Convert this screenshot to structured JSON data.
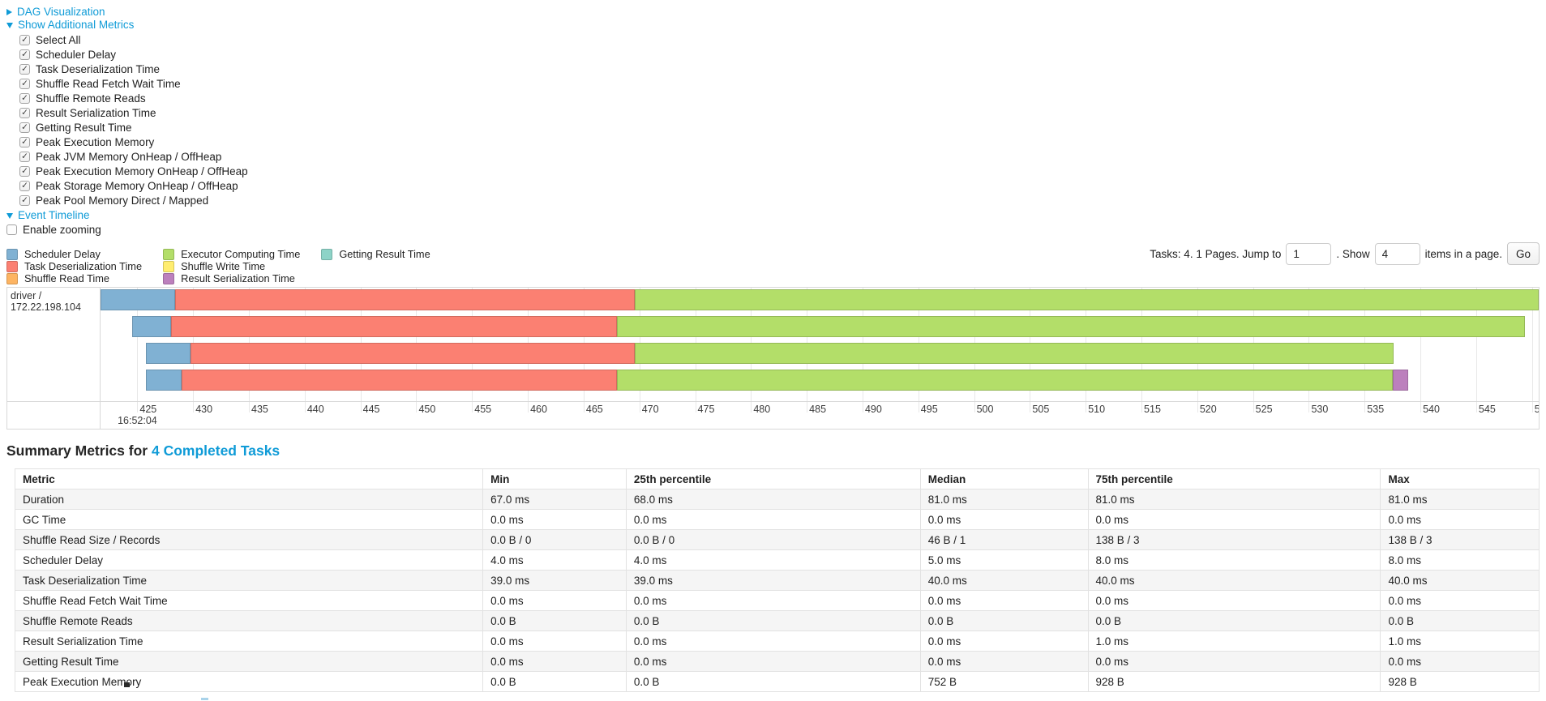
{
  "colors": {
    "link": "#0f9bd7"
  },
  "controls": {
    "dag": {
      "label": "DAG Visualization",
      "state": "collapsed"
    },
    "metrics": {
      "label": "Show Additional Metrics",
      "state": "expanded"
    },
    "timeline": {
      "label": "Event Timeline",
      "state": "expanded"
    },
    "enable_zooming": {
      "label": "Enable zooming",
      "checked": false
    },
    "metric_checkboxes": [
      {
        "label": "Select All",
        "checked": true
      },
      {
        "label": "Scheduler Delay",
        "checked": true
      },
      {
        "label": "Task Deserialization Time",
        "checked": true
      },
      {
        "label": "Shuffle Read Fetch Wait Time",
        "checked": true
      },
      {
        "label": "Shuffle Remote Reads",
        "checked": true
      },
      {
        "label": "Result Serialization Time",
        "checked": true
      },
      {
        "label": "Getting Result Time",
        "checked": true
      },
      {
        "label": "Peak Execution Memory",
        "checked": true
      },
      {
        "label": "Peak JVM Memory OnHeap / OffHeap",
        "checked": true
      },
      {
        "label": "Peak Execution Memory OnHeap / OffHeap",
        "checked": true
      },
      {
        "label": "Peak Storage Memory OnHeap / OffHeap",
        "checked": true
      },
      {
        "label": "Peak Pool Memory Direct / Mapped",
        "checked": true
      }
    ]
  },
  "legend": {
    "items": [
      {
        "id": "scheduler-delay",
        "label": "Scheduler Delay",
        "col": 0
      },
      {
        "id": "task-deserialization-time",
        "label": "Task Deserialization Time",
        "col": 0
      },
      {
        "id": "shuffle-read-time",
        "label": "Shuffle Read Time",
        "col": 0
      },
      {
        "id": "executor-computing-time",
        "label": "Executor Computing Time",
        "col": 1
      },
      {
        "id": "shuffle-write-time",
        "label": "Shuffle Write Time",
        "col": 1
      },
      {
        "id": "result-serialization-time",
        "label": "Result Serialization Time",
        "col": 1
      },
      {
        "id": "getting-result-time",
        "label": "Getting Result Time",
        "col": 2
      }
    ]
  },
  "pagination": {
    "tasks_text": "Tasks: 4. 1 Pages. Jump to",
    "jump_value": "1",
    "mid_text": ". Show",
    "show_value": "4",
    "suffix_text": "items in a page.",
    "go_label": "Go"
  },
  "chart_data": {
    "type": "timeline",
    "title": "Task Event Timeline",
    "executor_label": "driver / 172.22.198.104",
    "x_axis": {
      "unit": "ms within second 16:52:04",
      "domain": [
        421.7,
        550.6
      ],
      "ticks": [
        425,
        430,
        435,
        440,
        445,
        450,
        455,
        460,
        465,
        470,
        475,
        480,
        485,
        490,
        495,
        500,
        505,
        510,
        515,
        520,
        525,
        530,
        535,
        540,
        545,
        550
      ],
      "major_label": {
        "text": "16:52:04",
        "at": 425
      }
    },
    "series_colors": {
      "scheduler-delay": {
        "fill": "#80B1D3",
        "stroke": "#6B94B0"
      },
      "task-deserialization-time": {
        "fill": "#FB8072",
        "stroke": "#D26B5F"
      },
      "shuffle-read-time": {
        "fill": "#FDB462",
        "stroke": "#D39651"
      },
      "executor-computing-time": {
        "fill": "#B3DE69",
        "stroke": "#95B957"
      },
      "shuffle-write-time": {
        "fill": "#FFED6F",
        "stroke": "#D5C65C"
      },
      "result-serialization-time": {
        "fill": "#BC80BD",
        "stroke": "#9D6B9E"
      },
      "getting-result-time": {
        "fill": "#8DD3C7",
        "stroke": "#75B0A6"
      }
    },
    "tasks": [
      {
        "segments": [
          {
            "series": "scheduler-delay",
            "start": 421.7,
            "end": 428.4
          },
          {
            "series": "task-deserialization-time",
            "start": 428.4,
            "end": 469.6
          },
          {
            "series": "executor-computing-time",
            "start": 469.6,
            "end": 550.6
          }
        ]
      },
      {
        "segments": [
          {
            "series": "scheduler-delay",
            "start": 424.5,
            "end": 428.0
          },
          {
            "series": "task-deserialization-time",
            "start": 428.0,
            "end": 468.0
          },
          {
            "series": "executor-computing-time",
            "start": 468.0,
            "end": 549.4
          }
        ]
      },
      {
        "segments": [
          {
            "series": "scheduler-delay",
            "start": 425.8,
            "end": 429.8
          },
          {
            "series": "task-deserialization-time",
            "start": 429.8,
            "end": 469.6
          },
          {
            "series": "executor-computing-time",
            "start": 469.6,
            "end": 537.6
          }
        ]
      },
      {
        "segments": [
          {
            "series": "scheduler-delay",
            "start": 425.8,
            "end": 429.0
          },
          {
            "series": "task-deserialization-time",
            "start": 429.0,
            "end": 468.0
          },
          {
            "series": "executor-computing-time",
            "start": 468.0,
            "end": 537.5
          },
          {
            "series": "result-serialization-time",
            "start": 537.5,
            "end": 538.9
          }
        ]
      }
    ]
  },
  "summary": {
    "heading": "Summary Metrics for",
    "heading_link": "4 Completed Tasks"
  },
  "summary_table": {
    "columns": [
      "Metric",
      "Min",
      "25th percentile",
      "Median",
      "75th percentile",
      "Max"
    ],
    "rows": [
      [
        "Duration",
        "67.0 ms",
        "68.0 ms",
        "81.0 ms",
        "81.0 ms",
        "81.0 ms"
      ],
      [
        "GC Time",
        "0.0 ms",
        "0.0 ms",
        "0.0 ms",
        "0.0 ms",
        "0.0 ms"
      ],
      [
        "Shuffle Read Size / Records",
        "0.0 B / 0",
        "0.0 B / 0",
        "46 B / 1",
        "138 B / 3",
        "138 B / 3"
      ],
      [
        "Scheduler Delay",
        "4.0 ms",
        "4.0 ms",
        "5.0 ms",
        "8.0 ms",
        "8.0 ms"
      ],
      [
        "Task Deserialization Time",
        "39.0 ms",
        "39.0 ms",
        "40.0 ms",
        "40.0 ms",
        "40.0 ms"
      ],
      [
        "Shuffle Read Fetch Wait Time",
        "0.0 ms",
        "0.0 ms",
        "0.0 ms",
        "0.0 ms",
        "0.0 ms"
      ],
      [
        "Shuffle Remote Reads",
        "0.0 B",
        "0.0 B",
        "0.0 B",
        "0.0 B",
        "0.0 B"
      ],
      [
        "Result Serialization Time",
        "0.0 ms",
        "0.0 ms",
        "0.0 ms",
        "1.0 ms",
        "1.0 ms"
      ],
      [
        "Getting Result Time",
        "0.0 ms",
        "0.0 ms",
        "0.0 ms",
        "0.0 ms",
        "0.0 ms"
      ],
      [
        "Peak Execution Memory",
        "0.0 B",
        "0.0 B",
        "752 B",
        "928 B",
        "928 B"
      ]
    ]
  }
}
